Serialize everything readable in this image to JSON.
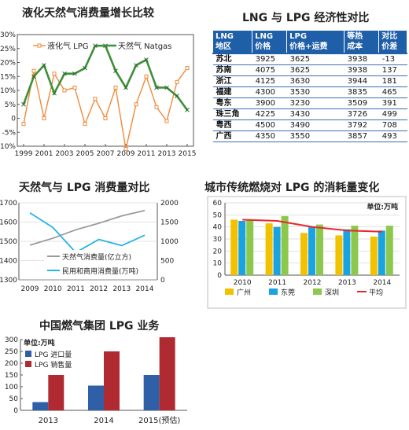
{
  "chart_data": [
    {
      "type": "line",
      "title": "液化天然气消费量增长比较",
      "x": [
        1999,
        2000,
        2001,
        2002,
        2003,
        2004,
        2005,
        2006,
        2007,
        2008,
        2009,
        2010,
        2011,
        2012,
        2013,
        2014,
        2015
      ],
      "xticks": [
        1999,
        2001,
        2003,
        2005,
        2007,
        2009,
        2011,
        2013,
        2015
      ],
      "ylim": [
        -10,
        30
      ],
      "yticks": [
        "30%",
        "25%",
        "20%",
        "15%",
        "10%",
        "5%",
        "0",
        "-5%",
        "-10%"
      ],
      "ytick_values": [
        30,
        25,
        20,
        15,
        10,
        5,
        0,
        -5,
        -10
      ],
      "series": [
        {
          "name": "液化气 LPG",
          "color": "#f08a3c",
          "values": [
            -2,
            17,
            0,
            16,
            10,
            11,
            -2,
            7,
            0,
            11,
            -11,
            5,
            15,
            4,
            -1,
            13,
            18
          ]
        },
        {
          "name": "天然气 Natgas",
          "color": "#3f8f3a",
          "values": [
            5,
            15,
            19,
            9,
            16,
            16,
            18,
            26,
            26,
            17,
            11,
            19,
            21,
            11,
            11,
            8,
            3
          ]
        }
      ]
    },
    {
      "type": "table",
      "title": "LNG 与 LPG 经济性对比",
      "headers": [
        "LNG\n地区",
        "LNG\n价格",
        "LPG\n价格+运费",
        "等热\n成本",
        "对比\n价差"
      ],
      "rows": [
        [
          "苏北",
          "3925",
          "3625",
          "3938",
          "-13"
        ],
        [
          "苏南",
          "4075",
          "3625",
          "3938",
          "137"
        ],
        [
          "浙江",
          "4125",
          "3630",
          "3944",
          "181"
        ],
        [
          "福建",
          "4300",
          "3530",
          "3835",
          "465"
        ],
        [
          "粤东",
          "3900",
          "3230",
          "3509",
          "391"
        ],
        [
          "珠三角",
          "4225",
          "3430",
          "3726",
          "499"
        ],
        [
          "粤西",
          "4500",
          "3490",
          "3792",
          "708"
        ],
        [
          "广西",
          "4350",
          "3550",
          "3857",
          "493"
        ]
      ]
    },
    {
      "type": "line",
      "title": "天然气与 LPG 消费量对比",
      "x": [
        2009,
        2010,
        2011,
        2012,
        2013,
        2014
      ],
      "y_left": {
        "lim": [
          1300,
          1700
        ],
        "ticks": [
          1300,
          1400,
          1500,
          1600,
          1700
        ]
      },
      "y_right": {
        "lim": [
          0,
          2000
        ],
        "ticks": [
          0,
          500,
          1000,
          1500,
          2000
        ]
      },
      "series": [
        {
          "name": "天然气消费量(亿立方)",
          "color": "#9a9a9a",
          "axis": "right",
          "values": [
            900,
            1080,
            1300,
            1470,
            1660,
            1800
          ]
        },
        {
          "name": "民用和商用消费量(万吨)",
          "color": "#2ab4e6",
          "axis": "left",
          "values": [
            1648,
            1572,
            1442,
            1510,
            1478,
            1532
          ]
        }
      ]
    },
    {
      "type": "bar",
      "title": "城市传统燃烧对 LPG 的消耗量变化",
      "unit_label": "单位:万吨",
      "categories": [
        "2010",
        "2011",
        "2012",
        "2013",
        "2014"
      ],
      "ylim": [
        0,
        60
      ],
      "yticks": [
        0,
        10,
        20,
        30,
        40,
        50,
        60
      ],
      "series": [
        {
          "name": "广州",
          "color": "#f2c200",
          "values": [
            46,
            43,
            35,
            33,
            32
          ]
        },
        {
          "name": "东莞",
          "color": "#1aa3e0",
          "values": [
            45,
            40,
            40,
            38,
            37
          ]
        },
        {
          "name": "深圳",
          "color": "#8cc84b",
          "values": [
            46,
            49,
            42,
            41,
            41
          ]
        },
        {
          "name": "平均",
          "color": "#e8262b",
          "type": "line",
          "values": [
            46,
            45,
            40,
            37,
            36
          ]
        }
      ]
    },
    {
      "type": "bar",
      "title": "中国燃气集团 LPG 业务",
      "unit_label": "单位:万吨",
      "categories": [
        "2013",
        "2014",
        "2015(预估)"
      ],
      "ylim": [
        0,
        300
      ],
      "yticks": [
        0,
        50,
        100,
        150,
        200,
        250,
        300
      ],
      "series": [
        {
          "name": "LPG 进口量",
          "color": "#2f5fa6",
          "values": [
            35,
            105,
            150
          ]
        },
        {
          "name": "LPG 销售量",
          "color": "#b02a32",
          "values": [
            150,
            250,
            310
          ]
        }
      ]
    }
  ]
}
